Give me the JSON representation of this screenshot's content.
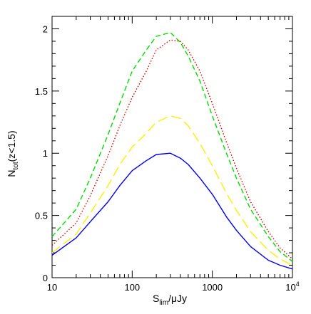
{
  "chart_data": {
    "type": "line",
    "title": "",
    "x_scale": "log",
    "xlim": [
      10,
      10000
    ],
    "ylim": [
      0,
      2.1
    ],
    "grid": false,
    "legend": "none",
    "xlabel": {
      "main": "S",
      "sub": "lim",
      "rest": "/μJy"
    },
    "ylabel": {
      "main": "N",
      "sub": "tot",
      "rest": "(z<1.5)"
    },
    "x_ticks": [
      {
        "value": 10,
        "label": "10"
      },
      {
        "value": 100,
        "label": "100"
      },
      {
        "value": 1000,
        "label": "1000"
      },
      {
        "value": 10000,
        "label": "10",
        "exp": "4"
      }
    ],
    "y_ticks": [
      {
        "value": 0,
        "label": "0"
      },
      {
        "value": 0.5,
        "label": "0.5"
      },
      {
        "value": 1,
        "label": "1"
      },
      {
        "value": 1.5,
        "label": "1.5"
      },
      {
        "value": 2,
        "label": "2"
      }
    ],
    "x": [
      10,
      20,
      30,
      50,
      70,
      100,
      150,
      200,
      300,
      400,
      500,
      700,
      1000,
      1500,
      2000,
      3000,
      5000,
      7000,
      10000
    ],
    "series": [
      {
        "color": "#00dd00",
        "dash": "dashed",
        "values": [
          0.33,
          0.55,
          0.8,
          1.15,
          1.4,
          1.66,
          1.83,
          1.94,
          1.97,
          1.89,
          1.78,
          1.58,
          1.3,
          1.0,
          0.8,
          0.55,
          0.33,
          0.21,
          0.13
        ]
      },
      {
        "color": "#dd0000",
        "dash": "dotted",
        "values": [
          0.26,
          0.44,
          0.66,
          0.98,
          1.22,
          1.45,
          1.66,
          1.83,
          1.91,
          1.9,
          1.83,
          1.66,
          1.4,
          1.09,
          0.88,
          0.61,
          0.37,
          0.24,
          0.15
        ]
      },
      {
        "color": "#ffee00",
        "dash": "longdash",
        "values": [
          0.2,
          0.35,
          0.52,
          0.74,
          0.91,
          1.05,
          1.16,
          1.25,
          1.3,
          1.28,
          1.22,
          1.08,
          0.9,
          0.68,
          0.54,
          0.37,
          0.22,
          0.15,
          0.1
        ]
      },
      {
        "color": "#0000ee",
        "dash": "solid",
        "values": [
          0.18,
          0.32,
          0.45,
          0.61,
          0.74,
          0.86,
          0.94,
          0.99,
          1.0,
          0.96,
          0.91,
          0.8,
          0.67,
          0.49,
          0.38,
          0.25,
          0.14,
          0.1,
          0.07
        ]
      }
    ]
  }
}
